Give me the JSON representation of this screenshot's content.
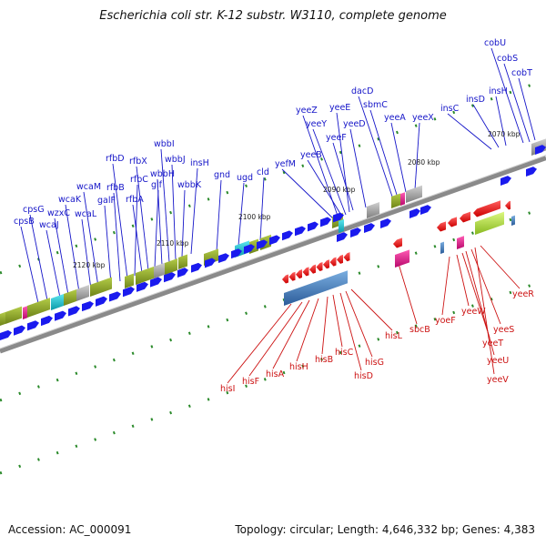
{
  "title": "Escherichia coli str. K-12 substr. W3110, complete genome",
  "accession": "Accession: AC_000091",
  "summary": "Topology: circular; Length: 4,646,332 bp; Genes: 4,383",
  "colors": {
    "forward_label": "#1515c8",
    "reverse_label": "#cc1111",
    "forward_arrow": "#1a1aee",
    "reverse_arrow": "#ee1111",
    "backbone": "#8a8a8a",
    "tick": "#2a8a2a",
    "cds_olive": "#8fa82a",
    "cds_cyan": "#16c2d0",
    "cds_gray": "#a8a8a8",
    "cds_magenta": "#e0168c",
    "cds_blue": "#4a86c8",
    "cds_lime": "#b8e04a"
  },
  "kbp_labels": [
    "2120 kbp",
    "2110 kbp",
    "2100 kbp",
    "2090 kbp",
    "2080 kbp",
    "2070 kbp"
  ],
  "forward_genes": [
    "cpsB",
    "cpsG",
    "wcaJ",
    "wzxC",
    "wcaK",
    "wcaL",
    "wcaM",
    "galF",
    "rfbB",
    "rfbD",
    "rfbC",
    "rfbA",
    "rfbX",
    "glf",
    "wbbH",
    "wbbI",
    "wbbJ",
    "wbbK",
    "insH",
    "gnd",
    "ugd",
    "cld",
    "yefM",
    "yeeZ",
    "yeeB",
    "yeeY",
    "yeeE",
    "yeeF",
    "yeeD",
    "dacD",
    "sbmC",
    "yeeA",
    "yeeX",
    "insC",
    "insD",
    "insH",
    "cobU",
    "cobS",
    "cobT"
  ],
  "reverse_genes": [
    "hisI",
    "hisF",
    "hisA",
    "hisH",
    "hisB",
    "hisC",
    "hisD",
    "hisG",
    "hisL",
    "sbcB",
    "yoeF",
    "yeeW",
    "yeeT",
    "yeeU",
    "yeeS",
    "yeeV",
    "yeeR"
  ]
}
